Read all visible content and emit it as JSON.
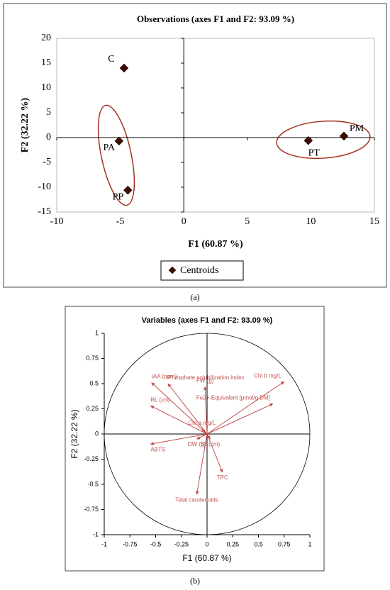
{
  "chart_data": [
    {
      "type": "scatter",
      "title": "Observations (axes F1 and F2: 93.09 %)",
      "x_label": "F1 (60.87 %)",
      "y_label": "F2 (32.22 %)",
      "xlim": [
        -10,
        15
      ],
      "xticks": [
        -10,
        -5,
        0,
        5,
        10,
        15
      ],
      "ylim": [
        -15,
        20
      ],
      "yticks": [
        -15,
        -10,
        -5,
        0,
        5,
        10,
        15,
        20
      ],
      "series": [
        {
          "name": "Centroids",
          "color": "#3d0c02",
          "point_labels": [
            "C",
            "PA",
            "PP",
            "PT",
            "PM"
          ],
          "x": [
            -4.7,
            -5.1,
            -4.4,
            9.8,
            12.6
          ],
          "values": [
            14,
            -0.7,
            -10.6,
            -0.6,
            0.3
          ]
        }
      ]
    },
    {
      "type": "biplot",
      "title": "Variables (axes F1 and F2: 93.09 %)",
      "x_label": "F1 (60.87 %)",
      "y_label": "F2 (32.22 %)",
      "xlim": [
        -1,
        1
      ],
      "xticks": [
        -1,
        -0.75,
        -0.5,
        -0.25,
        0,
        0.25,
        0.5,
        0.75,
        1
      ],
      "ylim": [
        -1,
        1
      ],
      "yticks": [
        -1,
        -0.75,
        -0.5,
        -0.25,
        0,
        0.25,
        0.5,
        0.75,
        1
      ],
      "color": "#c0504d",
      "categories": [
        "Chl b mg/L",
        "Fe2+-Equivalent [μmol/g DM]",
        "FW (g)",
        "Phosphate solubilization index",
        "IAA (ppm)",
        "RL (cm)",
        "Chl a mg/L",
        "ABTS",
        "DW (g)",
        "SL (cm)",
        "TPC",
        "Total carotenoids"
      ],
      "x": [
        0.75,
        0.64,
        -0.02,
        -0.38,
        -0.54,
        -0.55,
        -0.05,
        -0.55,
        -0.1,
        0.03,
        0.15,
        -0.1
      ],
      "values": [
        0.52,
        0.3,
        0.47,
        0.5,
        0.51,
        0.28,
        0.05,
        -0.1,
        -0.05,
        -0.05,
        -0.38,
        -0.6
      ]
    }
  ],
  "captions": [
    "(a)",
    "(b)"
  ]
}
